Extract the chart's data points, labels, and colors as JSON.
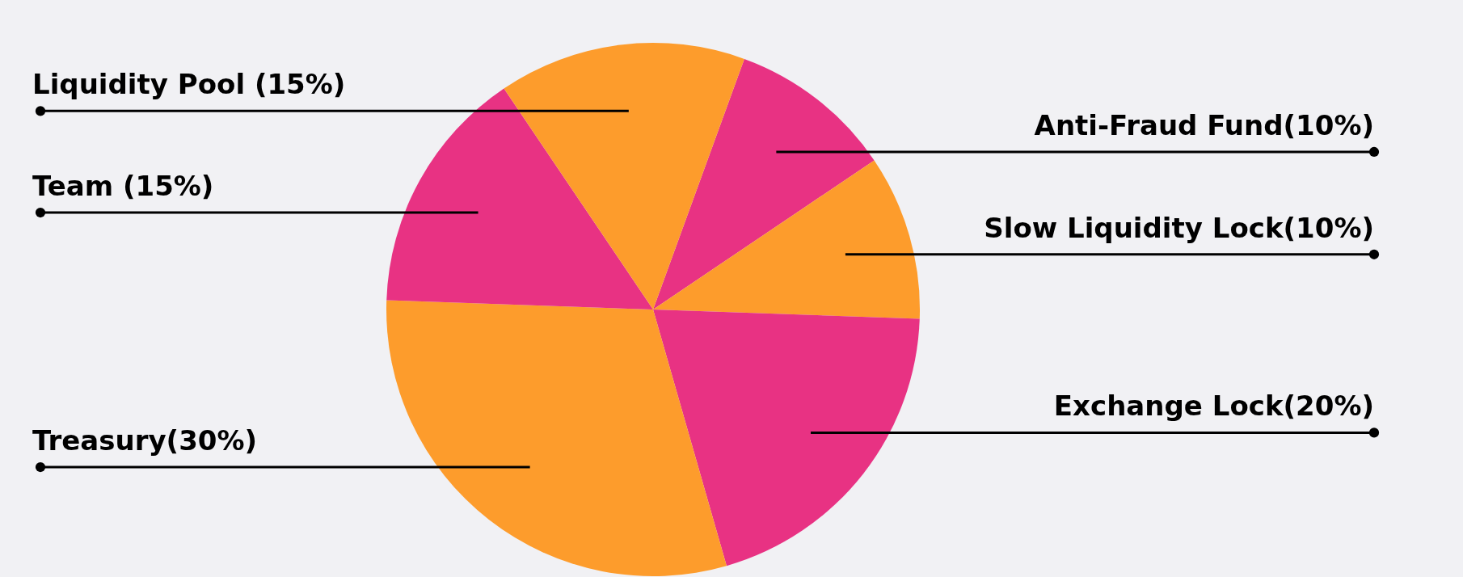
{
  "chart_data": {
    "type": "pie",
    "categories": [
      "Anti-Fraud Fund(10%)",
      "Slow Liquidity Lock(10%)",
      "Exchange Lock(20%)",
      "Treasury(30%)",
      "Team  (15%)",
      "Liquidity Pool (15%)"
    ],
    "values": [
      10,
      10,
      20,
      30,
      15,
      15
    ],
    "colors": [
      "#e83283",
      "#fd9c2c",
      "#e83283",
      "#fd9c2c",
      "#e83283",
      "#fd9c2c"
    ]
  }
}
